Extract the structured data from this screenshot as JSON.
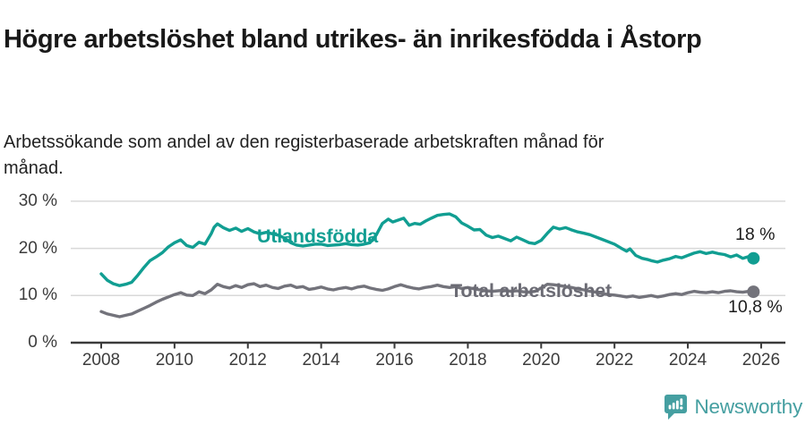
{
  "header": {
    "title": "Högre arbetslöshet bland utrikes- än inrikesfödda i Åstorp",
    "subtitle": "Arbetssökande som andel av den registerbaserade arbetskraften månad för månad."
  },
  "chart_data": {
    "type": "line",
    "title": "Högre arbetslöshet bland utrikes- än inrikesfödda i Åstorp",
    "subtitle": "Arbetssökande som andel av den registerbaserade arbetskraften månad för månad.",
    "xlabel": "",
    "ylabel": "",
    "grid": "horizontal",
    "legend_position": "inline-labels",
    "xlim": [
      2007.3,
      2026.6
    ],
    "ylim": [
      0,
      32
    ],
    "x_axis": {
      "ticks": [
        2008,
        2010,
        2012,
        2014,
        2016,
        2018,
        2020,
        2022,
        2024,
        2026
      ]
    },
    "y_axis": {
      "ticks": [
        0,
        10,
        20,
        30
      ],
      "tick_labels": [
        "0 %",
        "10 %",
        "20 %",
        "30 %"
      ]
    },
    "series": [
      {
        "name": "Utlandsfödda",
        "color": "#119E92",
        "end_label": "18 %",
        "end_value": 18,
        "points": [
          [
            2008.0,
            14.6
          ],
          [
            2008.17,
            13.2
          ],
          [
            2008.33,
            12.5
          ],
          [
            2008.5,
            12.1
          ],
          [
            2008.67,
            12.4
          ],
          [
            2008.83,
            12.8
          ],
          [
            2009.0,
            14.3
          ],
          [
            2009.17,
            16.0
          ],
          [
            2009.33,
            17.4
          ],
          [
            2009.5,
            18.2
          ],
          [
            2009.67,
            19.1
          ],
          [
            2009.83,
            20.3
          ],
          [
            2010.0,
            21.2
          ],
          [
            2010.17,
            21.8
          ],
          [
            2010.33,
            20.6
          ],
          [
            2010.5,
            20.2
          ],
          [
            2010.67,
            21.3
          ],
          [
            2010.83,
            20.9
          ],
          [
            2011.0,
            23.1
          ],
          [
            2011.08,
            24.5
          ],
          [
            2011.17,
            25.2
          ],
          [
            2011.33,
            24.4
          ],
          [
            2011.5,
            23.8
          ],
          [
            2011.67,
            24.3
          ],
          [
            2011.83,
            23.6
          ],
          [
            2012.0,
            24.2
          ],
          [
            2012.17,
            23.5
          ],
          [
            2012.33,
            23.1
          ],
          [
            2012.5,
            23.4
          ],
          [
            2012.67,
            23.1
          ],
          [
            2012.83,
            22.8
          ],
          [
            2013.0,
            22.2
          ],
          [
            2013.17,
            21.2
          ],
          [
            2013.33,
            20.7
          ],
          [
            2013.5,
            20.5
          ],
          [
            2013.67,
            20.7
          ],
          [
            2013.83,
            20.9
          ],
          [
            2014.0,
            20.9
          ],
          [
            2014.17,
            20.6
          ],
          [
            2014.33,
            20.7
          ],
          [
            2014.5,
            20.8
          ],
          [
            2014.67,
            21.0
          ],
          [
            2014.83,
            20.8
          ],
          [
            2015.0,
            20.7
          ],
          [
            2015.17,
            20.9
          ],
          [
            2015.33,
            21.2
          ],
          [
            2015.5,
            22.8
          ],
          [
            2015.67,
            25.3
          ],
          [
            2015.83,
            26.2
          ],
          [
            2015.95,
            25.6
          ],
          [
            2016.1,
            26.0
          ],
          [
            2016.25,
            26.4
          ],
          [
            2016.4,
            24.9
          ],
          [
            2016.55,
            25.3
          ],
          [
            2016.7,
            25.1
          ],
          [
            2016.85,
            25.8
          ],
          [
            2017.0,
            26.4
          ],
          [
            2017.17,
            27.0
          ],
          [
            2017.33,
            27.2
          ],
          [
            2017.5,
            27.3
          ],
          [
            2017.67,
            26.7
          ],
          [
            2017.83,
            25.4
          ],
          [
            2018.0,
            24.7
          ],
          [
            2018.17,
            23.9
          ],
          [
            2018.33,
            24.0
          ],
          [
            2018.5,
            22.8
          ],
          [
            2018.67,
            22.3
          ],
          [
            2018.83,
            22.6
          ],
          [
            2019.0,
            22.1
          ],
          [
            2019.17,
            21.6
          ],
          [
            2019.33,
            22.4
          ],
          [
            2019.5,
            21.8
          ],
          [
            2019.67,
            21.2
          ],
          [
            2019.83,
            21.0
          ],
          [
            2020.0,
            21.7
          ],
          [
            2020.17,
            23.2
          ],
          [
            2020.33,
            24.5
          ],
          [
            2020.5,
            24.1
          ],
          [
            2020.67,
            24.4
          ],
          [
            2020.83,
            23.9
          ],
          [
            2021.0,
            23.5
          ],
          [
            2021.17,
            23.2
          ],
          [
            2021.33,
            22.9
          ],
          [
            2021.5,
            22.4
          ],
          [
            2021.67,
            21.9
          ],
          [
            2021.83,
            21.4
          ],
          [
            2022.0,
            20.9
          ],
          [
            2022.17,
            20.1
          ],
          [
            2022.33,
            19.4
          ],
          [
            2022.42,
            19.9
          ],
          [
            2022.58,
            18.5
          ],
          [
            2022.75,
            17.9
          ],
          [
            2022.92,
            17.6
          ],
          [
            2023.0,
            17.4
          ],
          [
            2023.17,
            17.1
          ],
          [
            2023.33,
            17.5
          ],
          [
            2023.5,
            17.8
          ],
          [
            2023.67,
            18.3
          ],
          [
            2023.83,
            18.0
          ],
          [
            2024.0,
            18.5
          ],
          [
            2024.17,
            19.0
          ],
          [
            2024.33,
            19.3
          ],
          [
            2024.5,
            18.9
          ],
          [
            2024.67,
            19.2
          ],
          [
            2024.83,
            18.9
          ],
          [
            2025.0,
            18.7
          ],
          [
            2025.17,
            18.2
          ],
          [
            2025.33,
            18.6
          ],
          [
            2025.5,
            17.9
          ],
          [
            2025.67,
            18.3
          ],
          [
            2025.79,
            17.9
          ]
        ]
      },
      {
        "name": "Total arbetslöshet",
        "color": "#73737B",
        "end_label": "10,8 %",
        "end_value": 10.8,
        "points": [
          [
            2008.0,
            6.6
          ],
          [
            2008.17,
            6.1
          ],
          [
            2008.33,
            5.8
          ],
          [
            2008.5,
            5.5
          ],
          [
            2008.67,
            5.8
          ],
          [
            2008.83,
            6.1
          ],
          [
            2009.0,
            6.7
          ],
          [
            2009.17,
            7.3
          ],
          [
            2009.33,
            7.9
          ],
          [
            2009.5,
            8.6
          ],
          [
            2009.67,
            9.2
          ],
          [
            2009.83,
            9.7
          ],
          [
            2010.0,
            10.2
          ],
          [
            2010.17,
            10.6
          ],
          [
            2010.33,
            10.1
          ],
          [
            2010.5,
            10.0
          ],
          [
            2010.67,
            10.8
          ],
          [
            2010.83,
            10.4
          ],
          [
            2011.0,
            11.2
          ],
          [
            2011.17,
            12.4
          ],
          [
            2011.33,
            11.9
          ],
          [
            2011.5,
            11.6
          ],
          [
            2011.67,
            12.1
          ],
          [
            2011.83,
            11.7
          ],
          [
            2012.0,
            12.3
          ],
          [
            2012.17,
            12.5
          ],
          [
            2012.33,
            11.9
          ],
          [
            2012.5,
            12.2
          ],
          [
            2012.67,
            11.7
          ],
          [
            2012.83,
            11.5
          ],
          [
            2013.0,
            12.0
          ],
          [
            2013.17,
            12.2
          ],
          [
            2013.33,
            11.7
          ],
          [
            2013.5,
            11.9
          ],
          [
            2013.67,
            11.3
          ],
          [
            2013.83,
            11.5
          ],
          [
            2014.0,
            11.8
          ],
          [
            2014.17,
            11.4
          ],
          [
            2014.33,
            11.2
          ],
          [
            2014.5,
            11.5
          ],
          [
            2014.67,
            11.7
          ],
          [
            2014.83,
            11.4
          ],
          [
            2015.0,
            11.8
          ],
          [
            2015.17,
            12.0
          ],
          [
            2015.33,
            11.6
          ],
          [
            2015.5,
            11.3
          ],
          [
            2015.67,
            11.1
          ],
          [
            2015.83,
            11.4
          ],
          [
            2016.0,
            11.9
          ],
          [
            2016.17,
            12.3
          ],
          [
            2016.33,
            11.9
          ],
          [
            2016.5,
            11.6
          ],
          [
            2016.67,
            11.4
          ],
          [
            2016.83,
            11.7
          ],
          [
            2017.0,
            11.9
          ],
          [
            2017.17,
            12.2
          ],
          [
            2017.33,
            11.9
          ],
          [
            2017.5,
            11.7
          ],
          [
            2017.67,
            11.9
          ],
          [
            2017.83,
            11.5
          ],
          [
            2018.0,
            11.7
          ],
          [
            2018.17,
            11.4
          ],
          [
            2018.33,
            11.2
          ],
          [
            2018.5,
            11.0
          ],
          [
            2018.67,
            10.9
          ],
          [
            2018.83,
            11.0
          ],
          [
            2019.0,
            11.1
          ],
          [
            2019.17,
            10.9
          ],
          [
            2019.33,
            11.0
          ],
          [
            2019.5,
            10.8
          ],
          [
            2019.67,
            10.7
          ],
          [
            2019.83,
            10.9
          ],
          [
            2020.0,
            11.6
          ],
          [
            2020.17,
            12.4
          ],
          [
            2020.33,
            12.3
          ],
          [
            2020.5,
            12.1
          ],
          [
            2020.67,
            11.9
          ],
          [
            2020.83,
            11.7
          ],
          [
            2021.0,
            11.4
          ],
          [
            2021.17,
            11.2
          ],
          [
            2021.33,
            10.9
          ],
          [
            2021.5,
            10.7
          ],
          [
            2021.67,
            10.4
          ],
          [
            2021.83,
            10.2
          ],
          [
            2022.0,
            10.1
          ],
          [
            2022.17,
            9.9
          ],
          [
            2022.33,
            9.7
          ],
          [
            2022.5,
            9.9
          ],
          [
            2022.67,
            9.6
          ],
          [
            2022.83,
            9.8
          ],
          [
            2023.0,
            10.0
          ],
          [
            2023.17,
            9.7
          ],
          [
            2023.33,
            9.9
          ],
          [
            2023.5,
            10.2
          ],
          [
            2023.67,
            10.4
          ],
          [
            2023.83,
            10.2
          ],
          [
            2024.0,
            10.6
          ],
          [
            2024.17,
            10.9
          ],
          [
            2024.33,
            10.7
          ],
          [
            2024.5,
            10.6
          ],
          [
            2024.67,
            10.8
          ],
          [
            2024.83,
            10.6
          ],
          [
            2025.0,
            10.9
          ],
          [
            2025.17,
            11.0
          ],
          [
            2025.33,
            10.8
          ],
          [
            2025.5,
            10.7
          ],
          [
            2025.67,
            10.9
          ],
          [
            2025.79,
            10.8
          ]
        ]
      }
    ],
    "colors": {
      "accent_teal": "#119E92",
      "neutral_gray": "#73737B",
      "gridline": "#d9d9d9",
      "axis": "#3b3b3b",
      "brand_teal": "#459FA1"
    }
  },
  "footer": {
    "brand": "Newsworthy"
  }
}
